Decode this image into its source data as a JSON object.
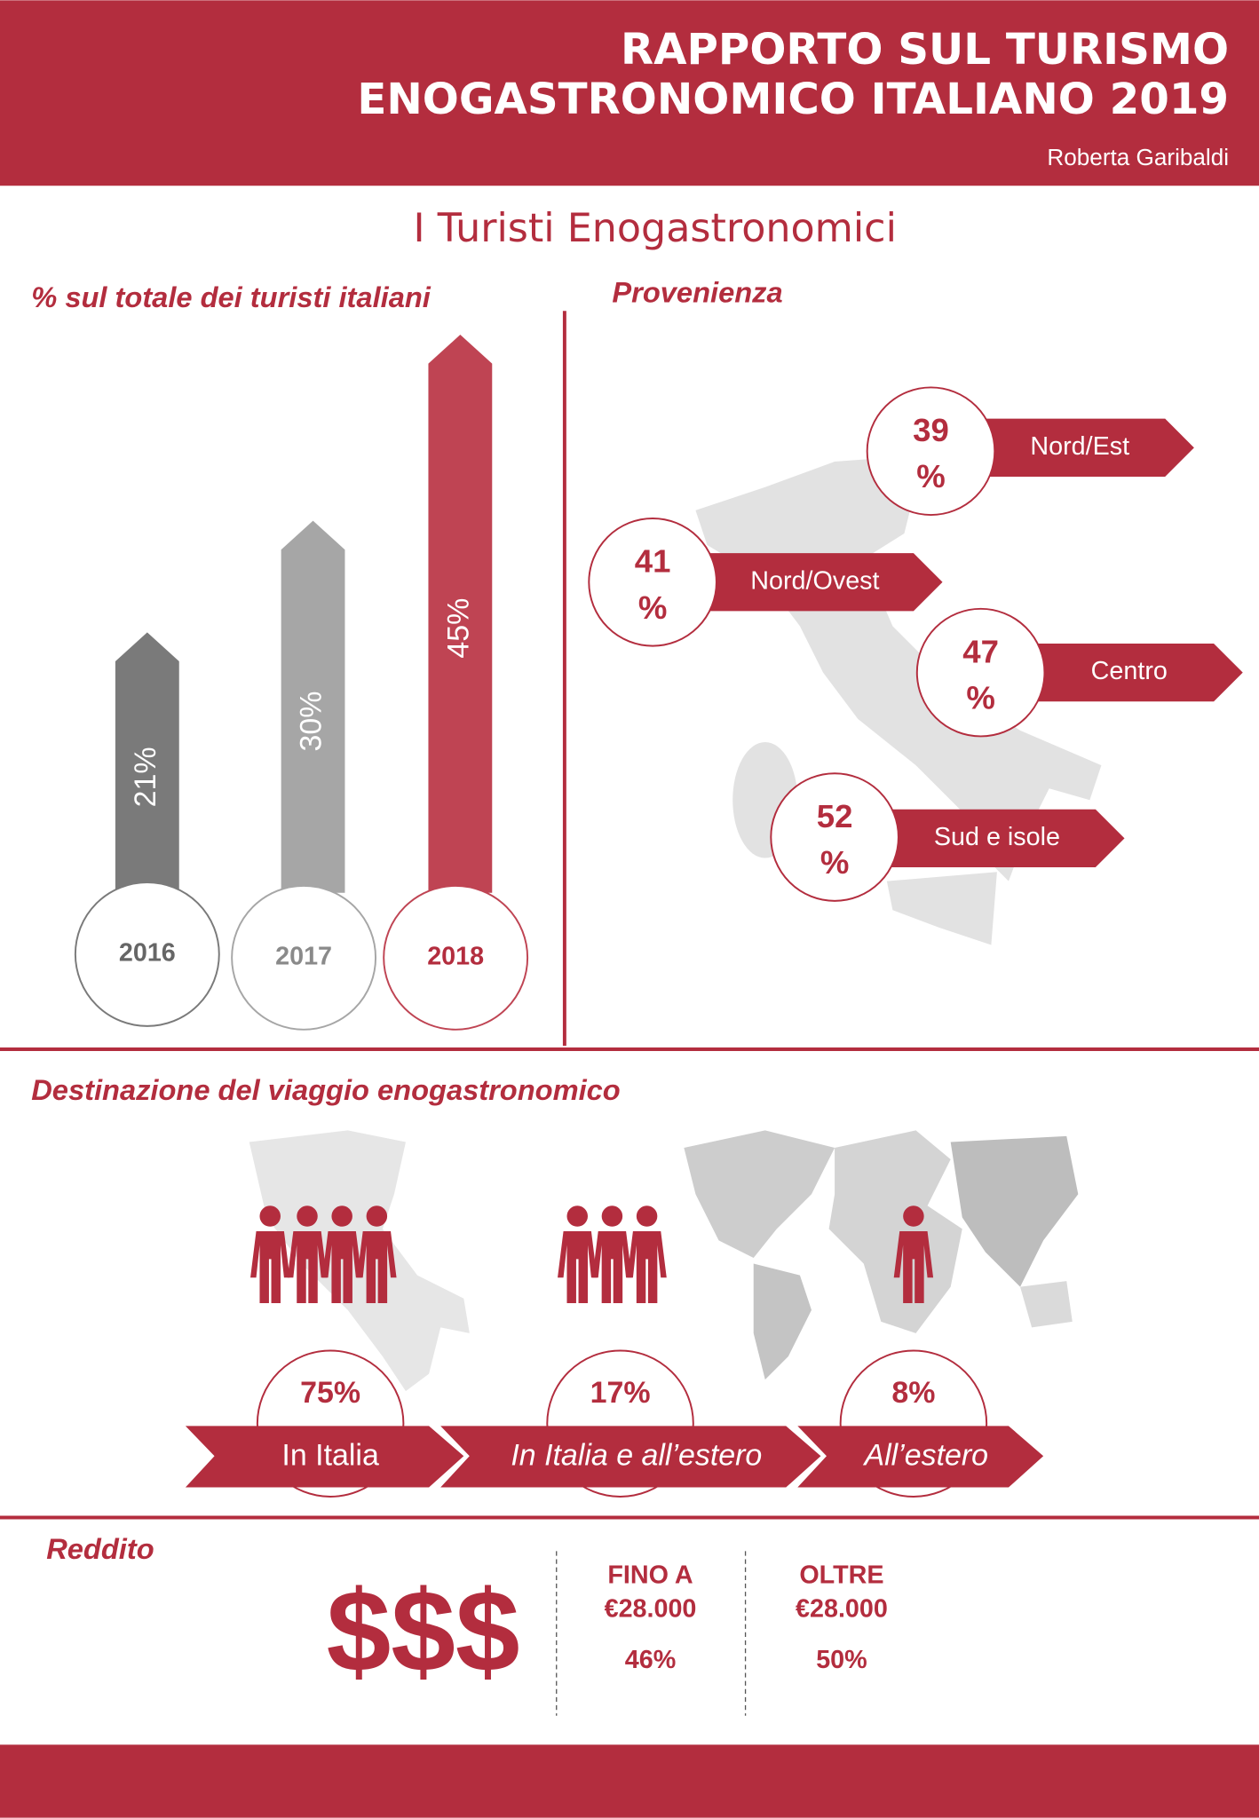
{
  "header": {
    "title_lines": [
      "RAPPORTO SUL TURISMO",
      "ENOGASTRONOMICO ITALIANO 2019"
    ],
    "author": "Roberta Garibaldi"
  },
  "section_title": "I Turisti Enogastronomici",
  "chart_data": {
    "type": "bar",
    "title": "% sul totale dei turisti italiani",
    "categories": [
      "2016",
      "2017",
      "2018"
    ],
    "values": [
      21,
      30,
      45
    ],
    "value_labels": [
      "21%",
      "30%",
      "45%"
    ],
    "colors": [
      "#7a7a7a",
      "#a6a6a6",
      "#bf4453"
    ]
  },
  "provenienza": {
    "title": "Provenienza",
    "regions": [
      {
        "name": "Nord/Est",
        "share": [
          "39",
          "%"
        ]
      },
      {
        "name": "Nord/Ovest",
        "share": [
          "41",
          "%"
        ]
      },
      {
        "name": "Centro",
        "share": [
          "47",
          "%"
        ]
      },
      {
        "name": "Sud e isole",
        "share": [
          "52",
          "%"
        ]
      }
    ]
  },
  "destinazione": {
    "title": "Destinazione del viaggio enogastronomico",
    "items": [
      {
        "share": "75%",
        "label": "In Italia"
      },
      {
        "share": "17%",
        "label": "In Italia e all’estero"
      },
      {
        "share": "8%",
        "label": "All’estero"
      }
    ]
  },
  "reddito": {
    "title": "Reddito",
    "symbol": "$$$",
    "groups": [
      {
        "heading": [
          "FINO A",
          "€28.000"
        ],
        "share": "46%"
      },
      {
        "heading": [
          "OLTRE",
          "€28.000"
        ],
        "share": "50%"
      }
    ]
  }
}
